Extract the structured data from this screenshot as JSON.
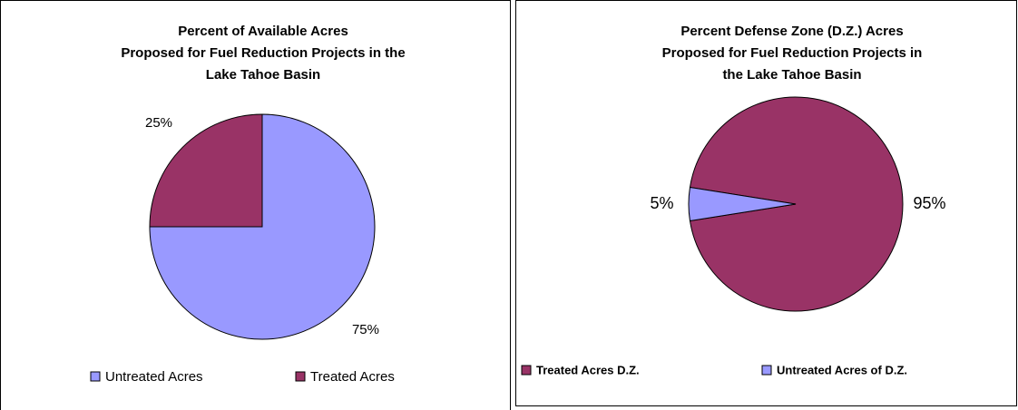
{
  "chart_data": [
    {
      "type": "pie",
      "title": [
        "Percent of Available Acres",
        "Proposed for Fuel Reduction Projects in the",
        "Lake Tahoe Basin"
      ],
      "categories": [
        "Untreated Acres",
        "Treated Acres"
      ],
      "values": [
        75,
        25
      ],
      "value_labels": [
        "75%",
        "25%"
      ],
      "colors": [
        "#9999ff",
        "#993366"
      ],
      "start_angle": 0,
      "legend": "bottom"
    },
    {
      "type": "pie",
      "title": [
        "Percent Defense Zone (D.Z.) Acres",
        "Proposed for Fuel Reduction Projects in",
        "the Lake Tahoe Basin"
      ],
      "categories": [
        "Treated Acres D.Z.",
        "Untreated Acres of D.Z."
      ],
      "values": [
        95,
        5
      ],
      "value_labels": [
        "95%",
        "5%"
      ],
      "colors": [
        "#993366",
        "#9999ff"
      ],
      "start_angle": 279,
      "legend": "bottom"
    }
  ]
}
